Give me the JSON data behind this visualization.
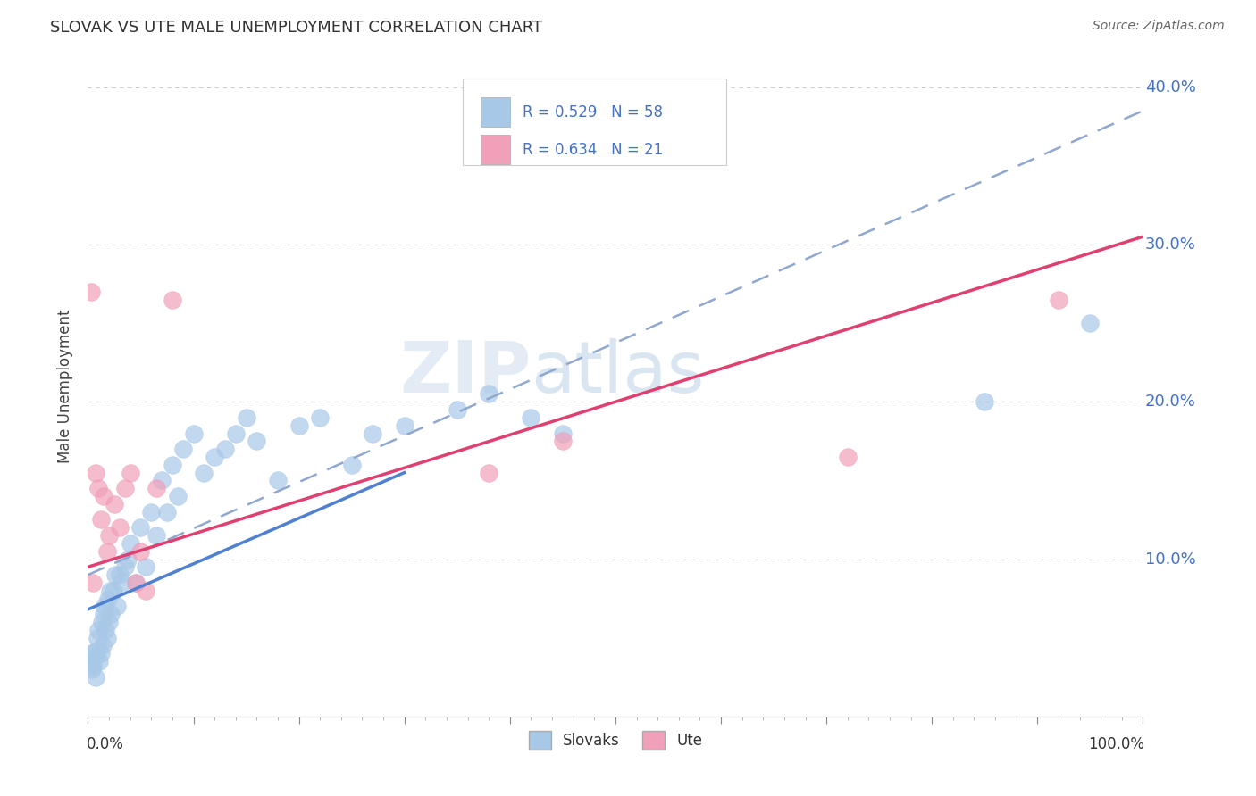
{
  "title": "SLOVAK VS UTE MALE UNEMPLOYMENT CORRELATION CHART",
  "source": "Source: ZipAtlas.com",
  "ylabel": "Male Unemployment",
  "legend_slovak": "Slovaks",
  "legend_ute": "Ute",
  "r_slovak": 0.529,
  "n_slovak": 58,
  "r_ute": 0.634,
  "n_ute": 21,
  "color_slovak": "#a8c8e8",
  "color_ute": "#f0a0b8",
  "color_slovak_line": "#5080d0",
  "color_ute_line": "#e04070",
  "color_dashed": "#90a8d0",
  "xlim": [
    0.0,
    1.0
  ],
  "ylim": [
    0.0,
    0.42
  ],
  "ytick_vals": [
    0.1,
    0.2,
    0.3,
    0.4
  ],
  "ytick_labels": [
    "10.0%",
    "20.0%",
    "30.0%",
    "40.0%"
  ],
  "slovak_x": [
    0.002,
    0.003,
    0.004,
    0.005,
    0.006,
    0.007,
    0.008,
    0.009,
    0.01,
    0.011,
    0.012,
    0.013,
    0.014,
    0.015,
    0.016,
    0.017,
    0.018,
    0.019,
    0.02,
    0.021,
    0.022,
    0.024,
    0.026,
    0.028,
    0.03,
    0.032,
    0.035,
    0.038,
    0.04,
    0.045,
    0.05,
    0.055,
    0.06,
    0.065,
    0.07,
    0.075,
    0.08,
    0.085,
    0.09,
    0.1,
    0.11,
    0.12,
    0.13,
    0.14,
    0.15,
    0.16,
    0.18,
    0.2,
    0.22,
    0.25,
    0.27,
    0.3,
    0.35,
    0.38,
    0.42,
    0.45,
    0.85,
    0.95
  ],
  "slovak_y": [
    0.035,
    0.04,
    0.03,
    0.032,
    0.038,
    0.025,
    0.042,
    0.05,
    0.055,
    0.035,
    0.04,
    0.06,
    0.045,
    0.065,
    0.07,
    0.055,
    0.05,
    0.075,
    0.06,
    0.08,
    0.065,
    0.08,
    0.09,
    0.07,
    0.09,
    0.085,
    0.095,
    0.1,
    0.11,
    0.085,
    0.12,
    0.095,
    0.13,
    0.115,
    0.15,
    0.13,
    0.16,
    0.14,
    0.17,
    0.18,
    0.155,
    0.165,
    0.17,
    0.18,
    0.19,
    0.175,
    0.15,
    0.185,
    0.19,
    0.16,
    0.18,
    0.185,
    0.195,
    0.205,
    0.19,
    0.18,
    0.2,
    0.25
  ],
  "ute_x": [
    0.003,
    0.005,
    0.007,
    0.01,
    0.012,
    0.015,
    0.018,
    0.02,
    0.025,
    0.03,
    0.035,
    0.04,
    0.045,
    0.05,
    0.055,
    0.065,
    0.08,
    0.38,
    0.45,
    0.72,
    0.92
  ],
  "ute_y": [
    0.27,
    0.085,
    0.155,
    0.145,
    0.125,
    0.14,
    0.105,
    0.115,
    0.135,
    0.12,
    0.145,
    0.155,
    0.085,
    0.105,
    0.08,
    0.145,
    0.265,
    0.155,
    0.175,
    0.165,
    0.265
  ],
  "slovak_line_x0": 0.0,
  "slovak_line_y0": 0.068,
  "slovak_line_x1": 0.3,
  "slovak_line_y1": 0.155,
  "ute_line_x0": 0.0,
  "ute_line_y0": 0.095,
  "ute_line_x1": 1.0,
  "ute_line_y1": 0.305,
  "dash_line_x0": 0.0,
  "dash_line_y0": 0.09,
  "dash_line_x1": 1.0,
  "dash_line_y1": 0.385
}
